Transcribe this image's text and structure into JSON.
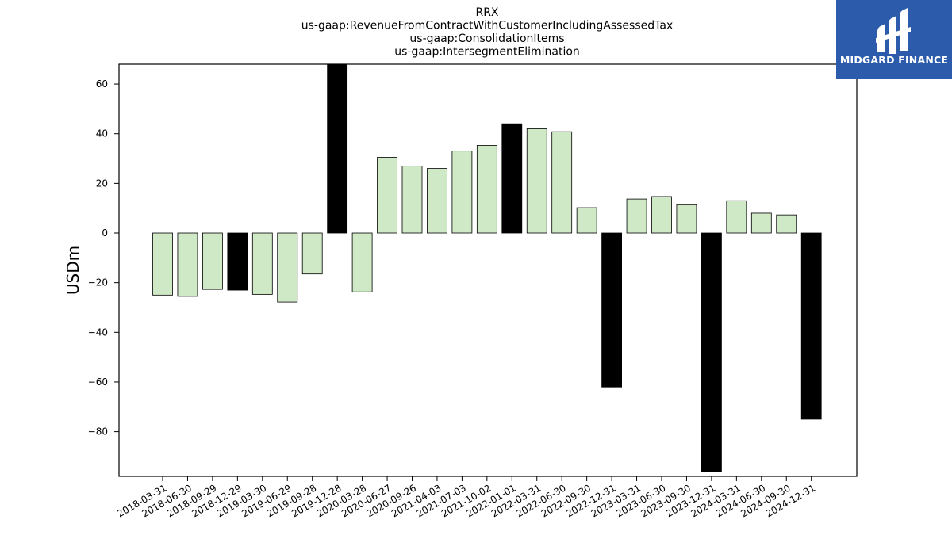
{
  "brand": {
    "name": "MIDGARD FINANCE",
    "color": "#2c5bab"
  },
  "colors": {
    "normal_bar": "#cfe9c7",
    "highlight_bar": "#000000",
    "edge": "#000000"
  },
  "chart_data": {
    "type": "bar",
    "title": [
      "RRX",
      "us-gaap:RevenueFromContractWithCustomerIncludingAssessedTax",
      "us-gaap:ConsolidationItems",
      "us-gaap:IntersegmentElimination"
    ],
    "xlabel": "",
    "ylabel": "USDm",
    "ylim": [
      -98,
      68
    ],
    "yticks": [
      60,
      40,
      20,
      0,
      -20,
      -40,
      -60,
      -80
    ],
    "grid": false,
    "categories": [
      "2018-03-31",
      "2018-06-30",
      "2018-09-29",
      "2018-12-29",
      "2019-03-30",
      "2019-06-29",
      "2019-09-28",
      "2019-12-28",
      "2020-03-28",
      "2020-06-27",
      "2020-09-26",
      "2021-04-03",
      "2021-07-03",
      "2021-10-02",
      "2022-01-01",
      "2022-03-31",
      "2022-06-30",
      "2022-09-30",
      "2022-12-31",
      "2023-03-31",
      "2023-06-30",
      "2023-09-30",
      "2023-12-31",
      "2024-03-31",
      "2024-06-30",
      "2024-09-30",
      "2024-12-31"
    ],
    "values": [
      -25,
      -25.5,
      -22.7,
      -23,
      -24.7,
      -27.8,
      -16.5,
      68,
      -23.7,
      30.5,
      27,
      26,
      33,
      35.3,
      44,
      42,
      40.8,
      10.2,
      -62,
      13.7,
      14.7,
      11.4,
      -96,
      13,
      8,
      7.3,
      -75
    ],
    "highlighted": [
      false,
      false,
      false,
      true,
      false,
      false,
      false,
      true,
      false,
      false,
      false,
      false,
      false,
      false,
      true,
      false,
      false,
      false,
      true,
      false,
      false,
      false,
      true,
      false,
      false,
      false,
      true
    ]
  }
}
